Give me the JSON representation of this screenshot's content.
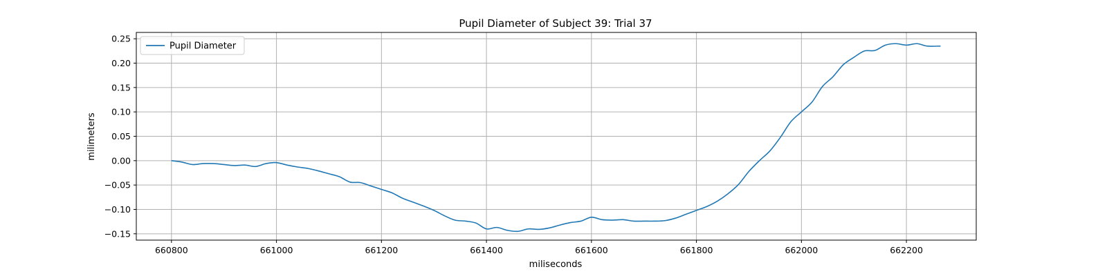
{
  "chart_data": {
    "type": "line",
    "title": "Pupil Diameter of Subject 39: Trial 37",
    "xlabel": "miliseconds",
    "ylabel": "milimeters",
    "xlim": [
      660733,
      662333
    ],
    "ylim": [
      -0.163,
      0.263
    ],
    "xticks": [
      660800,
      661000,
      661200,
      661400,
      661600,
      661800,
      662000,
      662200
    ],
    "yticks": [
      -0.15,
      -0.1,
      -0.05,
      0.0,
      0.05,
      0.1,
      0.15,
      0.2,
      0.25
    ],
    "ytick_labels": [
      "−0.15",
      "−0.10",
      "−0.05",
      "0.00",
      "0.05",
      "0.10",
      "0.15",
      "0.20",
      "0.25"
    ],
    "grid": true,
    "legend": "upper-left",
    "series": [
      {
        "name": "Pupil Diameter",
        "color": "#1f77b4",
        "x": [
          660800,
          660820,
          660840,
          660860,
          660880,
          660900,
          660920,
          660940,
          660960,
          660980,
          661000,
          661020,
          661040,
          661060,
          661080,
          661100,
          661120,
          661140,
          661160,
          661180,
          661200,
          661220,
          661240,
          661260,
          661280,
          661300,
          661320,
          661340,
          661360,
          661380,
          661400,
          661420,
          661440,
          661460,
          661480,
          661500,
          661520,
          661540,
          661560,
          661580,
          661600,
          661620,
          661640,
          661660,
          661680,
          661700,
          661720,
          661740,
          661760,
          661780,
          661800,
          661820,
          661840,
          661860,
          661880,
          661900,
          661920,
          661940,
          661960,
          661980,
          662000,
          662020,
          662040,
          662060,
          662080,
          662100,
          662120,
          662140,
          662160,
          662180,
          662200,
          662220,
          662240,
          662265
        ],
        "y": [
          0.0,
          -0.003,
          -0.008,
          -0.006,
          -0.006,
          -0.008,
          -0.01,
          -0.009,
          -0.012,
          -0.006,
          -0.004,
          -0.009,
          -0.013,
          -0.016,
          -0.021,
          -0.027,
          -0.033,
          -0.044,
          -0.045,
          -0.052,
          -0.059,
          -0.066,
          -0.077,
          -0.085,
          -0.093,
          -0.102,
          -0.113,
          -0.122,
          -0.124,
          -0.128,
          -0.14,
          -0.137,
          -0.143,
          -0.145,
          -0.14,
          -0.141,
          -0.138,
          -0.132,
          -0.127,
          -0.124,
          -0.116,
          -0.121,
          -0.122,
          -0.121,
          -0.124,
          -0.124,
          -0.124,
          -0.123,
          -0.118,
          -0.11,
          -0.102,
          -0.094,
          -0.083,
          -0.068,
          -0.049,
          -0.022,
          0.0,
          0.02,
          0.048,
          0.08,
          0.1,
          0.12,
          0.152,
          0.172,
          0.197,
          0.212,
          0.225,
          0.226,
          0.237,
          0.24,
          0.237,
          0.24,
          0.235,
          0.235
        ]
      }
    ]
  }
}
